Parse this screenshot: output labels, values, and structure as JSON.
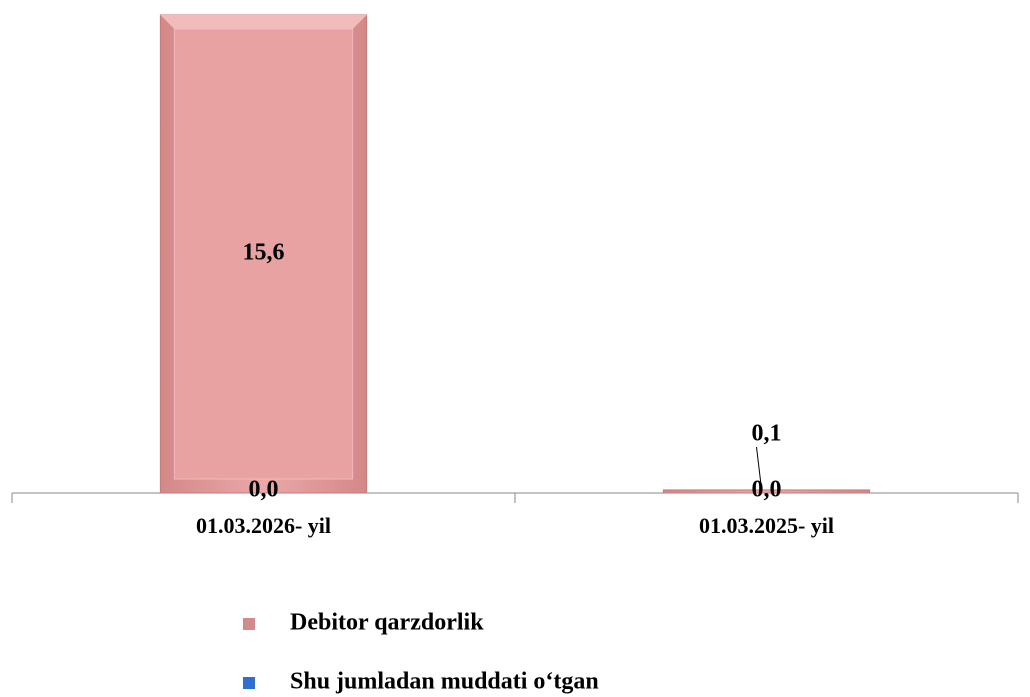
{
  "chart_data": {
    "type": "bar",
    "categories": [
      "01.03.2026- yil",
      "01.03.2025- yil"
    ],
    "series": [
      {
        "name": "Debitor qarzdorlik",
        "color": "#e6a3a3",
        "values": [
          15.6,
          0.1
        ],
        "value_labels": [
          "15,6",
          "0,1"
        ]
      },
      {
        "name": "Shu jumladan muddati o‘tgan",
        "color": "#2f6fd0",
        "values": [
          0.0,
          0.0
        ],
        "value_labels": [
          "0,0",
          "0,0"
        ]
      }
    ],
    "ylim": [
      0,
      15.6
    ]
  }
}
